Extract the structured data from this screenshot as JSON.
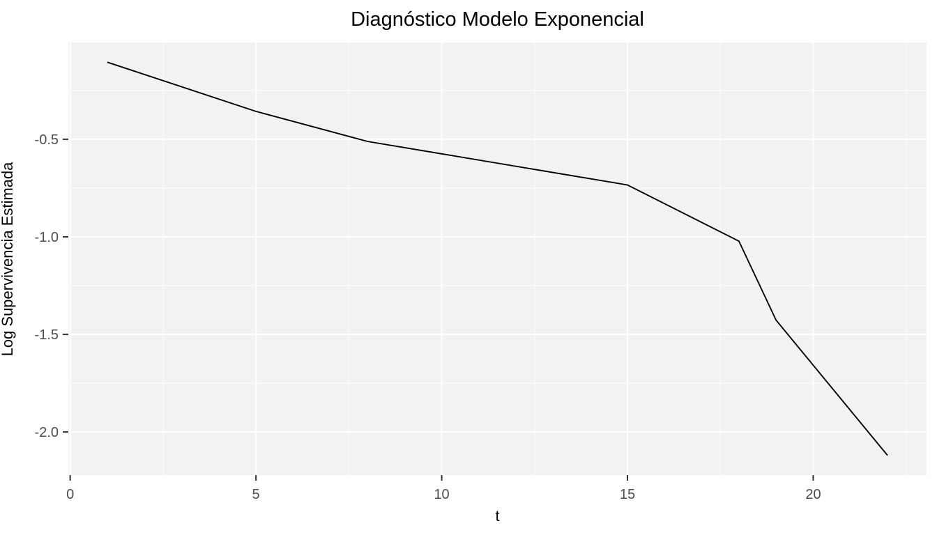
{
  "title": "Diagnóstico Modelo Exponencial",
  "x_axis_title": "t",
  "y_axis_title": "Log Supervivencia Estimada",
  "chart_data": {
    "type": "line",
    "title": "Diagnóstico Modelo Exponencial",
    "xlabel": "t",
    "ylabel": "Log Supervivencia Estimada",
    "series": [
      {
        "name": "log-supervivencia-estimada",
        "x": [
          1,
          5,
          8,
          15,
          18,
          19,
          22
        ],
        "y": [
          -0.105,
          -0.357,
          -0.511,
          -0.734,
          -1.022,
          -1.427,
          -2.12
        ]
      }
    ],
    "xlim": [
      -0.05,
      23.05
    ],
    "ylim": [
      -2.221,
      -0.004
    ],
    "x_ticks": [
      {
        "value": 0,
        "label": "0"
      },
      {
        "value": 5,
        "label": "5"
      },
      {
        "value": 10,
        "label": "10"
      },
      {
        "value": 15,
        "label": "15"
      },
      {
        "value": 20,
        "label": "20"
      }
    ],
    "y_ticks": [
      {
        "value": -0.5,
        "label": "-0.5"
      },
      {
        "value": -1.0,
        "label": "-1.0"
      },
      {
        "value": -1.5,
        "label": "-1.5"
      },
      {
        "value": -2.0,
        "label": "-2.0"
      }
    ],
    "x_minor_gridlines": [
      2.5,
      7.5,
      12.5,
      17.5,
      22.5
    ],
    "y_minor_gridlines": [
      -0.25,
      -0.75,
      -1.25,
      -1.75
    ],
    "grid": "major-and-minor",
    "legend": "none",
    "style": {
      "panel_bg": "#F2F2F2",
      "grid_color": "#FFFFFF",
      "line_color": "#000000",
      "tick_mark_color": "#333333",
      "tick_label_color": "#4D4D4D",
      "outer_bg": "#FFFFFF"
    }
  }
}
